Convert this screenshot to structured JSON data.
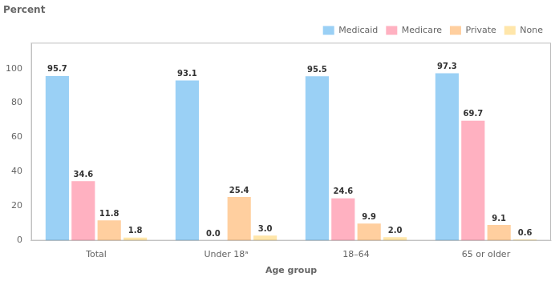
{
  "chart_data": {
    "type": "bar",
    "title": "Percent",
    "xlabel": "Age group",
    "categories": [
      "Total",
      "Under 18ᵃ",
      "18–64",
      "65 or older"
    ],
    "series": [
      {
        "name": "Medicaid",
        "values": [
          95.7,
          93.1,
          95.5,
          97.3
        ],
        "value_labels": [
          "95.7",
          "93.1",
          "95.5",
          "97.3"
        ]
      },
      {
        "name": "Medicare",
        "values": [
          34.6,
          0.0,
          24.6,
          69.7
        ],
        "value_labels": [
          "34.6",
          "0.0",
          "24.6",
          "69.7"
        ]
      },
      {
        "name": "Private",
        "values": [
          11.8,
          25.4,
          9.9,
          9.1
        ],
        "value_labels": [
          "11.8",
          "25.4",
          "9.9",
          "9.1"
        ]
      },
      {
        "name": "None",
        "values": [
          1.8,
          3.0,
          2.0,
          0.6
        ],
        "value_labels": [
          "1.8",
          "3.0",
          "2.0",
          "0.6"
        ]
      }
    ],
    "ylim": [
      0,
      115
    ],
    "yticks": [
      0,
      20,
      40,
      60,
      80,
      100
    ],
    "grid": false,
    "legend": "upper right",
    "data_labels": true
  }
}
